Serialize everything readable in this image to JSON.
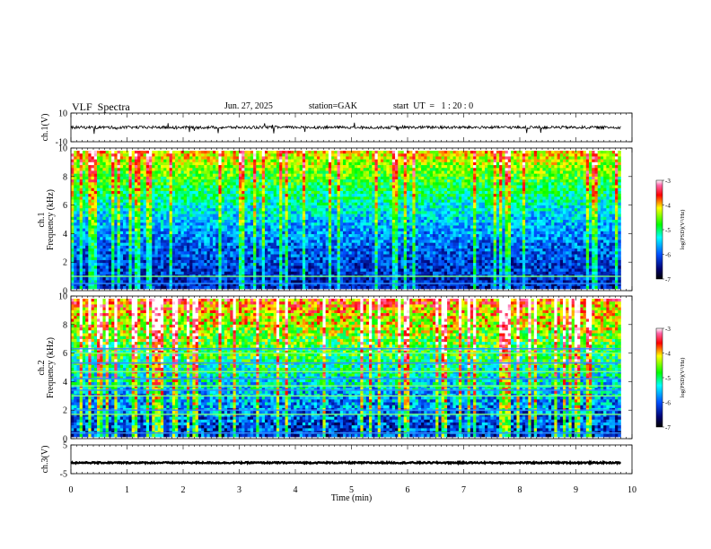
{
  "header": {
    "title": "VLF  Spectra",
    "date": "Jun. 27, 2025",
    "station": "station=GAK",
    "start": "start  UT  =   1 : 20 : 0"
  },
  "chart_data": [
    {
      "type": "line",
      "panel": "ch1-waveform",
      "ylabel": "ch.1(V)",
      "ylim": [
        -10,
        10
      ],
      "yticks": [
        "10",
        "-10"
      ],
      "xlim": [
        0,
        10
      ],
      "data_extent_min": [
        0,
        9.8
      ],
      "baseline": 0
    },
    {
      "type": "heatmap",
      "panel": "ch1-spectrogram",
      "ylabel": [
        "ch.1",
        "Frequency  (kHz)"
      ],
      "ylim": [
        0,
        10
      ],
      "yticks": [
        "0",
        "2",
        "4",
        "6",
        "8",
        "10"
      ],
      "xlim": [
        0,
        10
      ],
      "data_extent_min": [
        0,
        9.8
      ],
      "colorbar": {
        "label": "log(PSD)(V²/Hz)",
        "range": [
          -7,
          -3
        ],
        "ticks": [
          "-3",
          "-4",
          "-5",
          "-6",
          "-7"
        ]
      },
      "lines_khz": [
        0.5,
        1.0
      ]
    },
    {
      "type": "heatmap",
      "panel": "ch2-spectrogram",
      "ylabel": [
        "ch.2",
        "Frequency  (kHz)"
      ],
      "ylim": [
        0,
        10
      ],
      "yticks": [
        "0",
        "2",
        "4",
        "6",
        "8",
        "10"
      ],
      "xlim": [
        0,
        10
      ],
      "data_extent_min": [
        0,
        9.8
      ],
      "colorbar": {
        "label": "log(PSD)(V²/Hz)",
        "range": [
          -7,
          -3
        ],
        "ticks": [
          "-3",
          "-4",
          "-5",
          "-6",
          "-7"
        ]
      },
      "lines_khz": [
        0.4,
        1.7,
        2.0,
        3.0,
        3.4,
        3.7,
        4.2,
        4.7,
        5.3,
        6.0,
        6.3
      ]
    },
    {
      "type": "line",
      "panel": "ch3-waveform",
      "ylabel": "ch.3(V)",
      "ylim": [
        -5,
        5
      ],
      "yticks": [
        "5",
        "-5"
      ],
      "xlim": [
        0,
        10
      ],
      "data_extent_min": [
        0,
        9.8
      ],
      "baseline": -1.2,
      "xlabel": "Time  (min)",
      "xticks": [
        "0",
        "1",
        "2",
        "3",
        "4",
        "5",
        "6",
        "7",
        "8",
        "9",
        "10"
      ]
    }
  ]
}
